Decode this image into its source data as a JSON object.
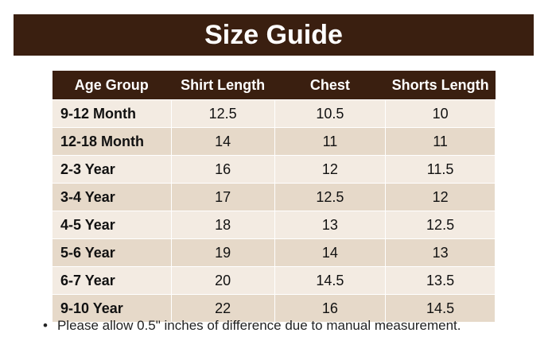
{
  "header": {
    "title": "Size Guide"
  },
  "table": {
    "columns": [
      "Age Group",
      "Shirt Length",
      "Chest",
      "Shorts Length"
    ],
    "rows": [
      [
        "9-12 Month",
        "12.5",
        "10.5",
        "10"
      ],
      [
        "12-18 Month",
        "14",
        "11",
        "11"
      ],
      [
        "2-3 Year",
        "16",
        "12",
        "11.5"
      ],
      [
        "3-4 Year",
        "17",
        "12.5",
        "12"
      ],
      [
        "4-5 Year",
        "18",
        "13",
        "12.5"
      ],
      [
        "5-6 Year",
        "19",
        "14",
        "13"
      ],
      [
        "6-7 Year",
        "20",
        "14.5",
        "13.5"
      ],
      [
        "9-10 Year",
        "22",
        "16",
        "14.5"
      ]
    ]
  },
  "note": "Please allow 0.5\" inches of difference due to manual measurement."
}
